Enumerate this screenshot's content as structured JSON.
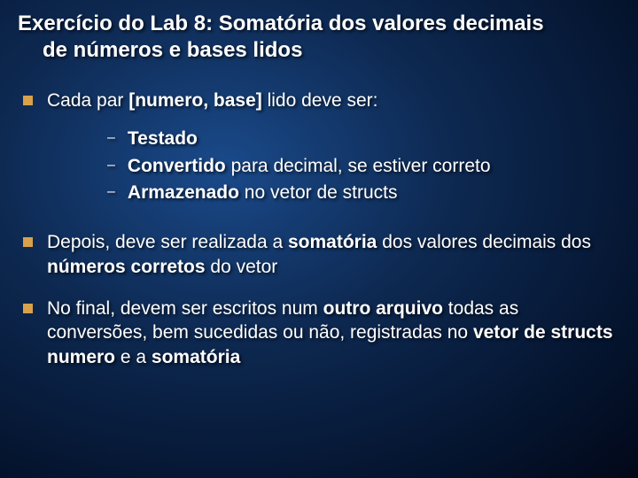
{
  "title_line1": "Exercício do Lab 8: Somatória dos valores decimais",
  "title_line2": "de números e bases lidos",
  "bullets": [
    {
      "pre": "Cada par ",
      "bold1": "[numero, base]",
      "post": " lido deve ser:",
      "subs": [
        {
          "bold": "Testado",
          "rest": ""
        },
        {
          "bold": "Convertido",
          "rest": " para decimal, se estiver correto"
        },
        {
          "bold": "Armazenado",
          "rest": " no vetor de structs"
        }
      ]
    },
    {
      "pre": "Depois, deve ser realizada a ",
      "bold1": "somatória",
      "mid": " dos valores decimais dos ",
      "bold2": "números corretos",
      "post": " do vetor"
    },
    {
      "pre": "No final, devem ser escritos num ",
      "bold1": "outro arquivo",
      "mid": " todas as conversões, bem sucedidas ou não, registradas no ",
      "bold2": "vetor de structs numero",
      "post2": " e a ",
      "bold3": "somatória"
    }
  ],
  "colors": {
    "bullet_marker": "#d9a14a",
    "text": "#ffffff"
  }
}
